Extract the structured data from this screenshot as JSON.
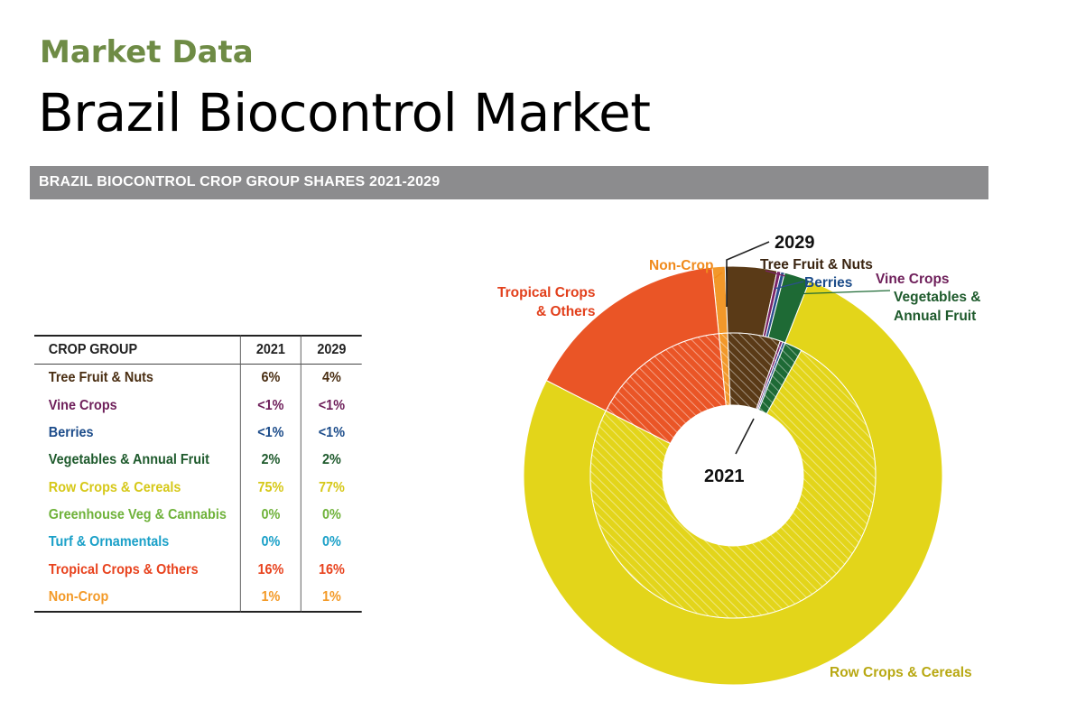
{
  "header": {
    "eyebrow": "Market Data",
    "title": "Brazil Biocontrol Market"
  },
  "banner": {
    "text": "BRAZIL BIOCONTROL CROP GROUP SHARES 2021-2029"
  },
  "table": {
    "headers": [
      "CROP GROUP",
      "2021",
      "2029"
    ],
    "rows": [
      {
        "name": "Tree Fruit & Nuts",
        "v2021": "6%",
        "v2029": "4%",
        "color": "#4a2e12"
      },
      {
        "name": "Vine Crops",
        "v2021": "<1%",
        "v2029": "<1%",
        "color": "#6e1f5a"
      },
      {
        "name": "Berries",
        "v2021": "<1%",
        "v2029": "<1%",
        "color": "#1c4c8a"
      },
      {
        "name": "Vegetables & Annual Fruit",
        "v2021": "2%",
        "v2029": "2%",
        "color": "#1e5a2c"
      },
      {
        "name": "Row Crops & Cereals",
        "v2021": "75%",
        "v2029": "77%",
        "color": "#d6c818"
      },
      {
        "name": "Greenhouse Veg & Cannabis",
        "v2021": "0%",
        "v2029": "0%",
        "color": "#6fb23a"
      },
      {
        "name": "Turf & Ornamentals",
        "v2021": "0%",
        "v2029": "0%",
        "color": "#1aa0c8"
      },
      {
        "name": "Tropical Crops & Others",
        "v2021": "16%",
        "v2029": "16%",
        "color": "#e8431e"
      },
      {
        "name": "Non-Crop",
        "v2021": "1%",
        "v2029": "1%",
        "color": "#f39a28"
      }
    ]
  },
  "chart_data": {
    "type": "pie",
    "subtype": "nested-donut",
    "title": "BRAZIL BIOCONTROL CROP GROUP SHARES 2021-2029",
    "inner_ring_label": "2021",
    "outer_ring_label": "2029",
    "categories": [
      "Non-Crop",
      "Tree Fruit & Nuts",
      "Vine Crops",
      "Berries",
      "Vegetables & Annual Fruit",
      "Row Crops & Cereals",
      "Tropical Crops & Others"
    ],
    "series": [
      {
        "name": "2021",
        "ring": "inner",
        "values": [
          1,
          6,
          0.3,
          0.3,
          2,
          75,
          16
        ]
      },
      {
        "name": "2029",
        "ring": "outer",
        "values": [
          1,
          4,
          0.3,
          0.3,
          2,
          77,
          16
        ]
      }
    ],
    "colors": [
      "#f2982a",
      "#5a3a17",
      "#7a2467",
      "#2b4f8e",
      "#1e6a35",
      "#e3d51a",
      "#ea5526"
    ],
    "slice_labels": [
      {
        "text": "Non-Crop",
        "color": "#f08a1c"
      },
      {
        "text": "Tree Fruit & Nuts",
        "color": "#3a2410"
      },
      {
        "text": "Vine Crops",
        "color": "#6e1f5a"
      },
      {
        "text": "Berries",
        "color": "#1c4c8a"
      },
      {
        "text": "Vegetables &",
        "color": "#1e5a2c"
      },
      {
        "text": "Annual Fruit",
        "color": "#1e5a2c"
      },
      {
        "text": "Row Crops & Cereals",
        "color": "#b8a812"
      },
      {
        "text": "Tropical Crops",
        "color": "#e2401c"
      },
      {
        "text": "& Others",
        "color": "#e2401c"
      }
    ]
  }
}
